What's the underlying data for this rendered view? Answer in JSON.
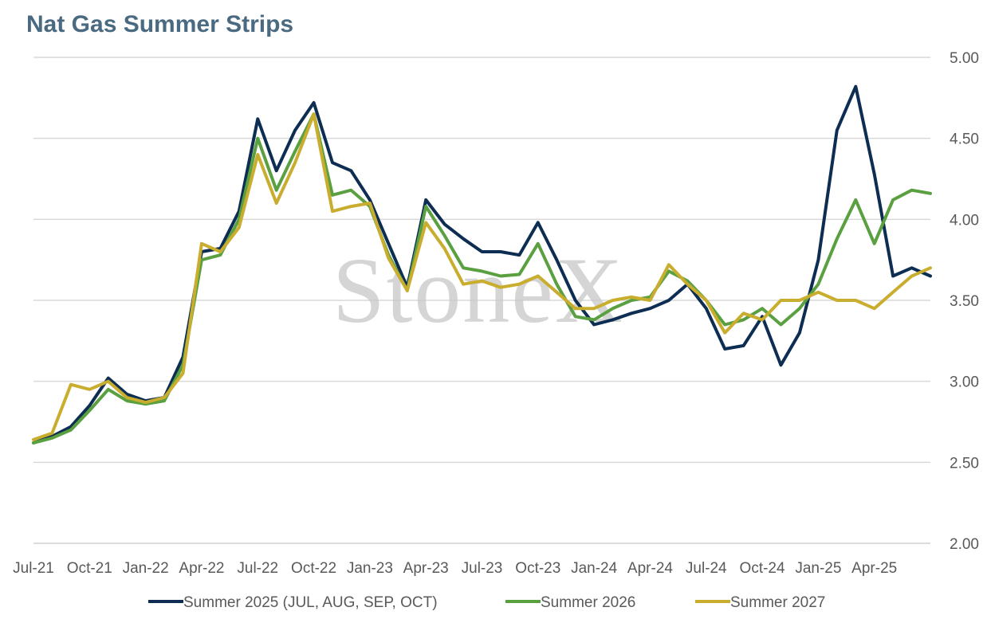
{
  "chart_data": {
    "type": "line",
    "title": "Nat Gas Summer Strips",
    "xlabel": "",
    "ylabel": "",
    "ylim": [
      2.0,
      5.0
    ],
    "xlim": [
      "2021-07",
      "2025-07"
    ],
    "y_ticks": [
      "2.00",
      "2.50",
      "3.00",
      "3.50",
      "4.00",
      "4.50",
      "5.00"
    ],
    "x_ticks": [
      "Jul-21",
      "Oct-21",
      "Jan-22",
      "Apr-22",
      "Jul-22",
      "Oct-22",
      "Jan-23",
      "Apr-23",
      "Jul-23",
      "Oct-23",
      "Jan-24",
      "Apr-24",
      "Jul-24",
      "Oct-24",
      "Jan-25",
      "Apr-25"
    ],
    "y_axis_position": "right",
    "grid": "horizontal",
    "legend_position": "bottom",
    "watermark": "StoneX",
    "x": [
      "2021-07",
      "2021-08",
      "2021-09",
      "2021-10",
      "2021-11",
      "2021-12",
      "2022-01",
      "2022-02",
      "2022-03",
      "2022-04",
      "2022-05",
      "2022-06",
      "2022-07",
      "2022-08",
      "2022-09",
      "2022-10",
      "2022-11",
      "2022-12",
      "2023-01",
      "2023-02",
      "2023-03",
      "2023-04",
      "2023-05",
      "2023-06",
      "2023-07",
      "2023-08",
      "2023-09",
      "2023-10",
      "2023-11",
      "2023-12",
      "2024-01",
      "2024-02",
      "2024-03",
      "2024-04",
      "2024-05",
      "2024-06",
      "2024-07",
      "2024-08",
      "2024-09",
      "2024-10",
      "2024-11",
      "2024-12",
      "2025-01",
      "2025-02",
      "2025-03",
      "2025-04",
      "2025-05",
      "2025-06",
      "2025-07"
    ],
    "series": [
      {
        "name": "Summer 2025 (JUL, AUG, SEP, OCT)",
        "color": "#0d2d52",
        "values": [
          2.62,
          2.66,
          2.72,
          2.85,
          3.02,
          2.92,
          2.88,
          2.9,
          3.15,
          3.8,
          3.82,
          4.05,
          4.62,
          4.3,
          4.55,
          4.72,
          4.35,
          4.3,
          4.12,
          3.85,
          3.58,
          4.12,
          3.97,
          3.88,
          3.8,
          3.8,
          3.78,
          3.98,
          3.75,
          3.5,
          3.35,
          3.38,
          3.42,
          3.45,
          3.5,
          3.6,
          3.45,
          3.2,
          3.22,
          3.4,
          3.1,
          3.3,
          3.75,
          4.55,
          4.82,
          4.28,
          3.65,
          3.7,
          3.65
        ]
      },
      {
        "name": "Summer 2026",
        "color": "#5aa040",
        "values": [
          2.62,
          2.65,
          2.7,
          2.82,
          2.95,
          2.88,
          2.86,
          2.88,
          3.1,
          3.75,
          3.78,
          4.0,
          4.5,
          4.18,
          4.42,
          4.65,
          4.15,
          4.18,
          4.08,
          3.78,
          3.56,
          4.08,
          3.9,
          3.7,
          3.68,
          3.65,
          3.66,
          3.85,
          3.6,
          3.4,
          3.38,
          3.45,
          3.5,
          3.52,
          3.68,
          3.62,
          3.5,
          3.35,
          3.38,
          3.45,
          3.35,
          3.45,
          3.6,
          3.88,
          4.12,
          3.85,
          4.12,
          4.18,
          4.16
        ]
      },
      {
        "name": "Summer 2027",
        "color": "#c9ad2f",
        "values": [
          2.64,
          2.68,
          2.98,
          2.95,
          3.0,
          2.9,
          2.87,
          2.9,
          3.05,
          3.85,
          3.8,
          3.95,
          4.4,
          4.1,
          4.35,
          4.65,
          4.05,
          4.08,
          4.1,
          3.76,
          3.56,
          3.98,
          3.82,
          3.6,
          3.62,
          3.58,
          3.6,
          3.65,
          3.55,
          3.45,
          3.45,
          3.5,
          3.52,
          3.5,
          3.72,
          3.6,
          3.5,
          3.3,
          3.42,
          3.38,
          3.5,
          3.5,
          3.55,
          3.5,
          3.5,
          3.45,
          3.55,
          3.65,
          3.7
        ]
      }
    ]
  }
}
